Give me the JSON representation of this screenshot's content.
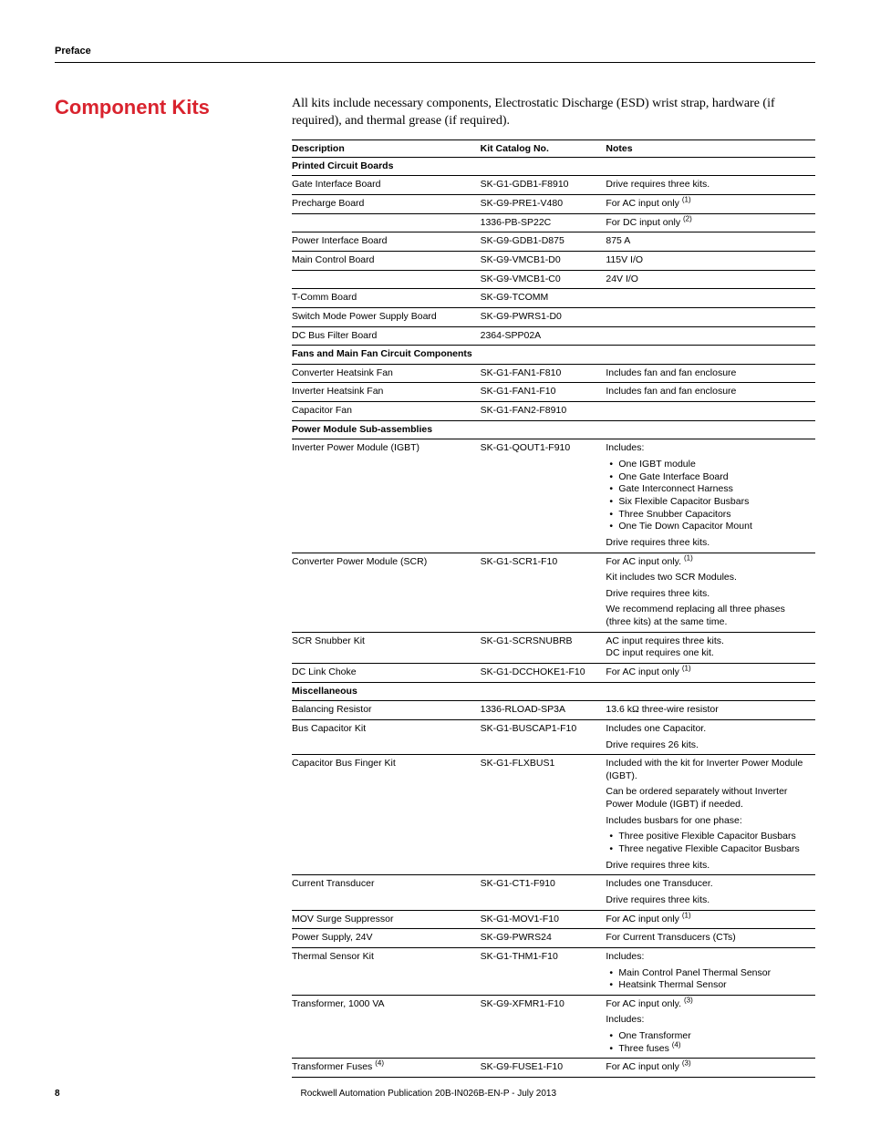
{
  "header": {
    "preface": "Preface"
  },
  "section": {
    "title": "Component Kits",
    "intro": "All kits include necessary components, Electrostatic Discharge (ESD) wrist strap, hardware (if required), and thermal grease (if required)."
  },
  "table": {
    "headers": {
      "desc": "Description",
      "cat": "Kit Catalog No.",
      "notes": "Notes"
    },
    "groups": [
      {
        "title": "Printed Circuit Boards",
        "rows": [
          {
            "desc": "Gate Interface Board",
            "cat": "SK-G1-GDB1-F8910",
            "notes": [
              {
                "t": "p",
                "v": "Drive requires three kits."
              }
            ]
          },
          {
            "desc": "Precharge Board",
            "cat": "SK-G9-PRE1-V480",
            "notes": [
              {
                "t": "p",
                "v": "For AC input only ",
                "sup": "(1)"
              }
            ]
          },
          {
            "desc": "",
            "cat": "1336-PB-SP22C",
            "notes": [
              {
                "t": "p",
                "v": "For DC input only ",
                "sup": "(2)"
              }
            ]
          },
          {
            "desc": "Power Interface Board",
            "cat": "SK-G9-GDB1-D875",
            "notes": [
              {
                "t": "p",
                "v": "875 A"
              }
            ]
          },
          {
            "desc": "Main Control Board",
            "cat": "SK-G9-VMCB1-D0",
            "notes": [
              {
                "t": "p",
                "v": "115V I/O"
              }
            ]
          },
          {
            "desc": "",
            "cat": "SK-G9-VMCB1-C0",
            "notes": [
              {
                "t": "p",
                "v": "24V I/O"
              }
            ]
          },
          {
            "desc": "T-Comm Board",
            "cat": "SK-G9-TCOMM",
            "notes": []
          },
          {
            "desc": "Switch Mode Power Supply Board",
            "cat": "SK-G9-PWRS1-D0",
            "notes": []
          },
          {
            "desc": "DC Bus Filter Board",
            "cat": "2364-SPP02A",
            "notes": []
          }
        ]
      },
      {
        "title": "Fans and Main Fan Circuit Components",
        "rows": [
          {
            "desc": "Converter Heatsink Fan",
            "cat": "SK-G1-FAN1-F810",
            "notes": [
              {
                "t": "p",
                "v": "Includes fan and fan enclosure"
              }
            ]
          },
          {
            "desc": "Inverter Heatsink Fan",
            "cat": "SK-G1-FAN1-F10",
            "notes": [
              {
                "t": "p",
                "v": "Includes fan and fan enclosure"
              }
            ]
          },
          {
            "desc": "Capacitor Fan",
            "cat": "SK-G1-FAN2-F8910",
            "notes": []
          }
        ]
      },
      {
        "title": "Power Module Sub-assemblies",
        "rows": [
          {
            "desc": "Inverter Power Module (IGBT)",
            "cat": "SK-G1-QOUT1-F910",
            "notes": [
              {
                "t": "p",
                "v": "Includes:"
              },
              {
                "t": "ul",
                "items": [
                  "One IGBT module",
                  "One Gate Interface Board",
                  "Gate Interconnect Harness",
                  "Six Flexible Capacitor Busbars",
                  "Three Snubber Capacitors",
                  "One Tie Down Capacitor Mount"
                ]
              },
              {
                "t": "p",
                "v": "Drive requires three kits."
              }
            ]
          },
          {
            "desc": "Converter Power Module (SCR)",
            "cat": "SK-G1-SCR1-F10",
            "notes": [
              {
                "t": "p",
                "v": "For AC input only. ",
                "sup": "(1)"
              },
              {
                "t": "p",
                "v": "Kit includes two SCR Modules."
              },
              {
                "t": "p",
                "v": "Drive requires three kits."
              },
              {
                "t": "p",
                "v": "We recommend replacing all three phases (three kits) at the same time."
              }
            ]
          },
          {
            "desc": "SCR Snubber Kit",
            "cat": "SK-G1-SCRSNUBRB",
            "notes": [
              {
                "t": "p",
                "v": "AC input requires three kits."
              },
              {
                "t": "p-nomargin",
                "v": "DC input requires one kit."
              }
            ]
          },
          {
            "desc": "DC Link Choke",
            "cat": "SK-G1-DCCHOKE1-F10",
            "notes": [
              {
                "t": "p",
                "v": "For AC input only ",
                "sup": "(1)"
              }
            ]
          }
        ]
      },
      {
        "title": "Miscellaneous",
        "rows": [
          {
            "desc": "Balancing Resistor",
            "cat": "1336-RLOAD-SP3A",
            "notes": [
              {
                "t": "html",
                "v": "13.6 k<span class='omega'>Ω</span> three-wire resistor"
              }
            ]
          },
          {
            "desc": "Bus Capacitor Kit",
            "cat": "SK-G1-BUSCAP1-F10",
            "notes": [
              {
                "t": "p",
                "v": "Includes one Capacitor."
              },
              {
                "t": "p",
                "v": "Drive requires 26 kits."
              }
            ]
          },
          {
            "desc": "Capacitor Bus Finger Kit",
            "cat": "SK-G1-FLXBUS1",
            "notes": [
              {
                "t": "p",
                "v": "Included with the kit for Inverter Power Module (IGBT)."
              },
              {
                "t": "p",
                "v": "Can be ordered separately without Inverter Power Module (IGBT) if needed."
              },
              {
                "t": "p",
                "v": "Includes busbars for one phase:"
              },
              {
                "t": "ul",
                "items": [
                  "Three positive Flexible Capacitor Busbars",
                  "Three negative Flexible Capacitor Busbars"
                ]
              },
              {
                "t": "p",
                "v": "Drive requires three kits."
              }
            ]
          },
          {
            "desc": "Current Transducer",
            "cat": "SK-G1-CT1-F910",
            "notes": [
              {
                "t": "p",
                "v": "Includes one Transducer."
              },
              {
                "t": "p",
                "v": "Drive requires three kits."
              }
            ]
          },
          {
            "desc": "MOV Surge Suppressor",
            "cat": "SK-G1-MOV1-F10",
            "notes": [
              {
                "t": "p",
                "v": "For AC input only ",
                "sup": "(1)"
              }
            ]
          },
          {
            "desc": "Power Supply, 24V",
            "cat": "SK-G9-PWRS24",
            "notes": [
              {
                "t": "p",
                "v": "For Current Transducers (CTs)"
              }
            ]
          },
          {
            "desc": "Thermal Sensor Kit",
            "cat": "SK-G1-THM1-F10",
            "notes": [
              {
                "t": "p",
                "v": "Includes:"
              },
              {
                "t": "ul",
                "items": [
                  "Main Control Panel Thermal Sensor",
                  "Heatsink Thermal Sensor"
                ]
              }
            ]
          },
          {
            "desc": "Transformer, 1000 VA",
            "cat": "SK-G9-XFMR1-F10",
            "notes": [
              {
                "t": "p",
                "v": "For AC input only. ",
                "sup": "(3)"
              },
              {
                "t": "p",
                "v": "Includes:"
              },
              {
                "t": "ul-sup",
                "items": [
                  {
                    "v": "One Transformer"
                  },
                  {
                    "v": "Three fuses ",
                    "sup": "(4)"
                  }
                ]
              }
            ]
          },
          {
            "desc_html": "Transformer Fuses <sup>(4)</sup>",
            "cat": "SK-G9-FUSE1-F10",
            "notes": [
              {
                "t": "p",
                "v": "For AC input only ",
                "sup": "(3)"
              }
            ]
          }
        ]
      }
    ]
  },
  "footer": {
    "page": "8",
    "pub": "Rockwell Automation Publication 20B-IN026B-EN-P - July 2013"
  }
}
